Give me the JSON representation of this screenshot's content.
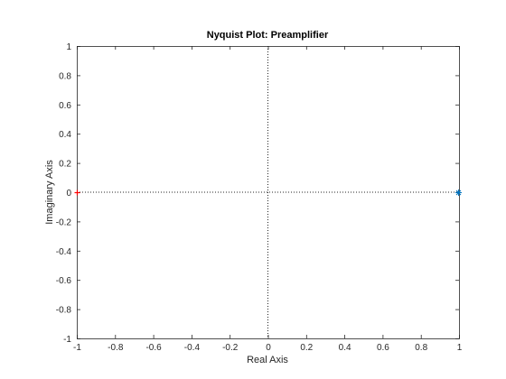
{
  "chart_data": {
    "type": "scatter",
    "title": "Nyquist Plot: Preamplifier",
    "xlabel": "Real Axis",
    "ylabel": "Imaginary Axis",
    "xlim": [
      -1,
      1
    ],
    "ylim": [
      -1,
      1
    ],
    "x_ticks": [
      -1,
      -0.8,
      -0.6,
      -0.4,
      -0.2,
      0,
      0.2,
      0.4,
      0.6,
      0.8,
      1
    ],
    "y_ticks": [
      -1,
      -0.8,
      -0.6,
      -0.4,
      -0.2,
      0,
      0.2,
      0.4,
      0.6,
      0.8,
      1
    ],
    "x_tick_labels": [
      "-1",
      "-0.8",
      "-0.6",
      "-0.4",
      "-0.2",
      "0",
      "0.2",
      "0.4",
      "0.6",
      "0.8",
      "1"
    ],
    "y_tick_labels": [
      "-1",
      "-0.8",
      "-0.6",
      "-0.4",
      "-0.2",
      "0",
      "0.2",
      "0.4",
      "0.6",
      "0.8",
      "1"
    ],
    "grid": false,
    "zero_lines": true,
    "critical_point": {
      "x": -1,
      "y": 0,
      "marker": "+",
      "color": "#ff0000"
    },
    "series": [
      {
        "x": [
          1
        ],
        "y": [
          0
        ],
        "marker": "*",
        "color": "#0072bd"
      }
    ]
  },
  "colors": {
    "axes": "#262626",
    "zero_line": "#262626",
    "critical_point": "#ff0000",
    "series": "#0072bd"
  }
}
